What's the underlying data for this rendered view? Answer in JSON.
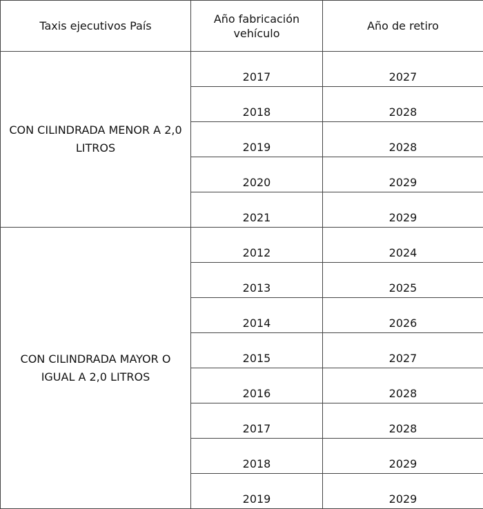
{
  "headers": [
    "Taxis ejecutivos País",
    "Año fabricación vehículo",
    "Año de retiro"
  ],
  "groups": [
    {
      "label": "CON CILINDRADA MENOR A 2,0 LITROS",
      "rows": [
        {
          "fabricacion": "2017",
          "retiro": "2027"
        },
        {
          "fabricacion": "2018",
          "retiro": "2028"
        },
        {
          "fabricacion": "2019",
          "retiro": "2028"
        },
        {
          "fabricacion": "2020",
          "retiro": "2029"
        },
        {
          "fabricacion": "2021",
          "retiro": "2029"
        }
      ]
    },
    {
      "label": "CON CILINDRADA MAYOR O IGUAL A 2,0 LITROS",
      "rows": [
        {
          "fabricacion": "2012",
          "retiro": "2024"
        },
        {
          "fabricacion": "2013",
          "retiro": "2025"
        },
        {
          "fabricacion": "2014",
          "retiro": "2026"
        },
        {
          "fabricacion": "2015",
          "retiro": "2027"
        },
        {
          "fabricacion": "2016",
          "retiro": "2028"
        },
        {
          "fabricacion": "2017",
          "retiro": "2028"
        },
        {
          "fabricacion": "2018",
          "retiro": "2029"
        },
        {
          "fabricacion": "2019",
          "retiro": "2029"
        }
      ]
    }
  ]
}
